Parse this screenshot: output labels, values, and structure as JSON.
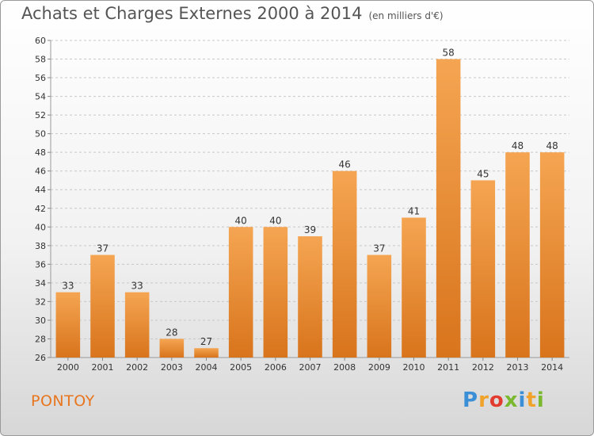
{
  "title": "Achats et Charges Externes 2000 à 2014",
  "subtitle": "(en milliers d'€)",
  "commune": "PONTOY",
  "logo": {
    "text": "Proxiti",
    "colors": [
      "#3a8fd6",
      "#f0a22a",
      "#e23b2f",
      "#7ab82e",
      "#3a8fd6",
      "#f0a22a",
      "#7ab82e"
    ]
  },
  "colors": {
    "bar_top": "#f5a552",
    "bar_bottom": "#d8741c",
    "grid": "#c8c8c8",
    "commune_text": "#e8761e"
  },
  "chart_data": {
    "type": "bar",
    "title": "Achats et Charges Externes 2000 à 2014",
    "subtitle": "(en milliers d'€)",
    "categories": [
      "2000",
      "2001",
      "2002",
      "2003",
      "2004",
      "2005",
      "2006",
      "2007",
      "2008",
      "2009",
      "2010",
      "2011",
      "2012",
      "2013",
      "2014"
    ],
    "values": [
      33,
      37,
      33,
      28,
      27,
      40,
      40,
      39,
      46,
      37,
      41,
      58,
      45,
      48,
      48
    ],
    "ylim": [
      26,
      60
    ],
    "yticks": [
      26,
      28,
      30,
      32,
      34,
      36,
      38,
      40,
      42,
      44,
      46,
      48,
      50,
      52,
      54,
      56,
      58,
      60
    ],
    "grid": true,
    "data_labels": true
  }
}
